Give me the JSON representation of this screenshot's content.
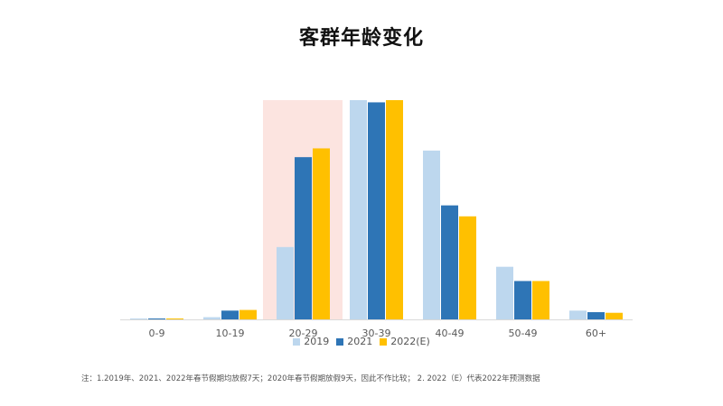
{
  "title": "客群年龄变化",
  "footnote": "注：1.2019年、2021、2022年春节假期均放假7天；2020年春节假期放假9天，因此不作比较；  2. 2022（E）代表2022年预测数据",
  "colors": {
    "s2019": "#bdd7ee",
    "s2021": "#2e75b6",
    "s2022": "#ffc000",
    "highlight": "#fce4e0",
    "axis": "#d9d9d9",
    "tick": "#595959"
  },
  "chart_data": {
    "type": "bar",
    "title": "客群年龄变化",
    "categories": [
      "0-9",
      "10-19",
      "20-29",
      "30-39",
      "40-49",
      "50-49",
      "60+"
    ],
    "series": [
      {
        "name": "2019",
        "color": "#bdd7ee",
        "values": [
          0.3,
          1.0,
          33,
          100,
          77,
          24,
          4
        ]
      },
      {
        "name": "2021",
        "color": "#2e75b6",
        "values": [
          0.3,
          4,
          74,
          99,
          52,
          17.5,
          3.3
        ]
      },
      {
        "name": "2022(E)",
        "color": "#ffc000",
        "values": [
          0.3,
          4.3,
          78,
          100,
          47,
          17.5,
          3.0
        ]
      }
    ],
    "highlight_category": "20-29",
    "ylim": [
      0,
      100
    ],
    "grid": false,
    "legend_position": "bottom-center"
  }
}
